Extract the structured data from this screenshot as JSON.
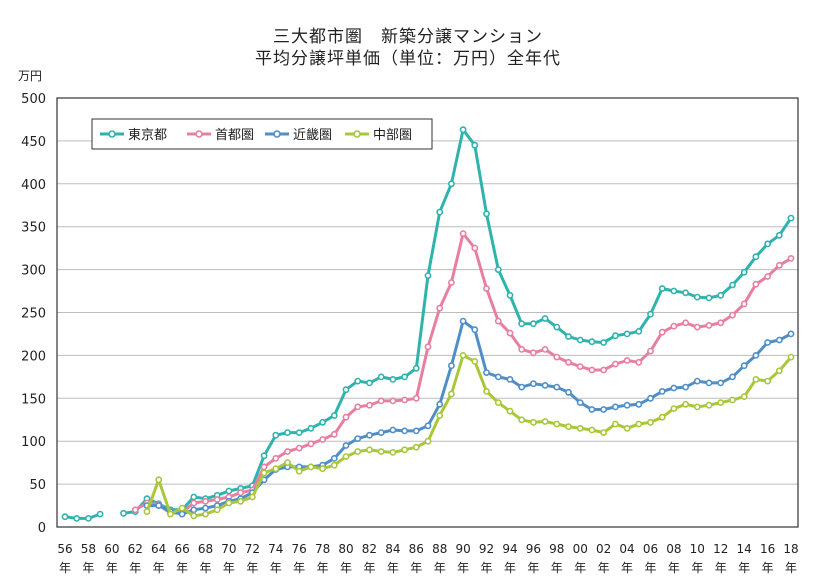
{
  "chart_data": {
    "type": "line",
    "title": "三大都市圏　新築分譲マンション",
    "subtitle": "平均分譲坪単価（単位：万円）全年代",
    "ylabel": "万円",
    "ylim": [
      0,
      500
    ],
    "yticks": [
      0,
      50,
      100,
      150,
      200,
      250,
      300,
      350,
      400,
      450,
      500
    ],
    "xticks": [
      {
        "year": 1956,
        "label": "56"
      },
      {
        "year": 1958,
        "label": "58"
      },
      {
        "year": 1960,
        "label": "60"
      },
      {
        "year": 1962,
        "label": "62"
      },
      {
        "year": 1964,
        "label": "64"
      },
      {
        "year": 1966,
        "label": "66"
      },
      {
        "year": 1968,
        "label": "68"
      },
      {
        "year": 1970,
        "label": "70"
      },
      {
        "year": 1972,
        "label": "72"
      },
      {
        "year": 1974,
        "label": "74"
      },
      {
        "year": 1976,
        "label": "76"
      },
      {
        "year": 1978,
        "label": "78"
      },
      {
        "year": 1980,
        "label": "80"
      },
      {
        "year": 1982,
        "label": "82"
      },
      {
        "year": 1984,
        "label": "84"
      },
      {
        "year": 1986,
        "label": "86"
      },
      {
        "year": 1988,
        "label": "88"
      },
      {
        "year": 1990,
        "label": "90"
      },
      {
        "year": 1992,
        "label": "92"
      },
      {
        "year": 1994,
        "label": "94"
      },
      {
        "year": 1996,
        "label": "96"
      },
      {
        "year": 1998,
        "label": "98"
      },
      {
        "year": 2000,
        "label": "00"
      },
      {
        "year": 2002,
        "label": "02"
      },
      {
        "year": 2004,
        "label": "04"
      },
      {
        "year": 2006,
        "label": "06"
      },
      {
        "year": 2008,
        "label": "08"
      },
      {
        "year": 2010,
        "label": "10"
      },
      {
        "year": 2012,
        "label": "12"
      },
      {
        "year": 2014,
        "label": "14"
      },
      {
        "year": 2016,
        "label": "16"
      },
      {
        "year": 2018,
        "label": "18"
      }
    ],
    "xtick_suffix": "年",
    "xlim": [
      1956,
      2018
    ],
    "legend_position": "top-left",
    "grid": "horizontal",
    "series": [
      {
        "name": "東京都",
        "color": "#2fb3ad",
        "points": [
          [
            1956,
            12
          ],
          [
            1957,
            10
          ],
          [
            1958,
            10
          ],
          [
            1959,
            15
          ],
          [
            1961,
            16
          ],
          [
            1962,
            18
          ],
          [
            1963,
            33
          ],
          [
            1964,
            27
          ],
          [
            1965,
            20
          ],
          [
            1966,
            20
          ],
          [
            1967,
            35
          ],
          [
            1968,
            33
          ],
          [
            1969,
            37
          ],
          [
            1970,
            42
          ],
          [
            1971,
            45
          ],
          [
            1972,
            48
          ],
          [
            1973,
            83
          ],
          [
            1974,
            107
          ],
          [
            1975,
            110
          ],
          [
            1976,
            110
          ],
          [
            1977,
            115
          ],
          [
            1978,
            122
          ],
          [
            1979,
            130
          ],
          [
            1980,
            160
          ],
          [
            1981,
            170
          ],
          [
            1982,
            168
          ],
          [
            1983,
            175
          ],
          [
            1984,
            172
          ],
          [
            1985,
            175
          ],
          [
            1986,
            185
          ],
          [
            1987,
            293
          ],
          [
            1988,
            367
          ],
          [
            1989,
            400
          ],
          [
            1990,
            463
          ],
          [
            1991,
            445
          ],
          [
            1992,
            365
          ],
          [
            1993,
            300
          ],
          [
            1994,
            270
          ],
          [
            1995,
            237
          ],
          [
            1996,
            237
          ],
          [
            1997,
            243
          ],
          [
            1998,
            233
          ],
          [
            1999,
            222
          ],
          [
            2000,
            218
          ],
          [
            2001,
            216
          ],
          [
            2002,
            215
          ],
          [
            2003,
            223
          ],
          [
            2004,
            225
          ],
          [
            2005,
            228
          ],
          [
            2006,
            248
          ],
          [
            2007,
            278
          ],
          [
            2008,
            275
          ],
          [
            2009,
            273
          ],
          [
            2010,
            268
          ],
          [
            2011,
            267
          ],
          [
            2012,
            270
          ],
          [
            2013,
            282
          ],
          [
            2014,
            297
          ],
          [
            2015,
            315
          ],
          [
            2016,
            330
          ],
          [
            2017,
            340
          ],
          [
            2018,
            360
          ]
        ]
      },
      {
        "name": "首都圏",
        "color": "#e87fa0",
        "points": [
          [
            1962,
            20
          ],
          [
            1963,
            28
          ],
          [
            1964,
            26
          ],
          [
            1965,
            16
          ],
          [
            1966,
            17
          ],
          [
            1967,
            28
          ],
          [
            1968,
            30
          ],
          [
            1969,
            32
          ],
          [
            1970,
            35
          ],
          [
            1971,
            40
          ],
          [
            1972,
            43
          ],
          [
            1973,
            70
          ],
          [
            1974,
            80
          ],
          [
            1975,
            88
          ],
          [
            1976,
            92
          ],
          [
            1977,
            97
          ],
          [
            1978,
            102
          ],
          [
            1979,
            108
          ],
          [
            1980,
            128
          ],
          [
            1981,
            140
          ],
          [
            1982,
            142
          ],
          [
            1983,
            147
          ],
          [
            1984,
            147
          ],
          [
            1985,
            148
          ],
          [
            1986,
            150
          ],
          [
            1987,
            210
          ],
          [
            1988,
            255
          ],
          [
            1989,
            285
          ],
          [
            1990,
            342
          ],
          [
            1991,
            325
          ],
          [
            1992,
            278
          ],
          [
            1993,
            240
          ],
          [
            1994,
            226
          ],
          [
            1995,
            207
          ],
          [
            1996,
            203
          ],
          [
            1997,
            207
          ],
          [
            1998,
            198
          ],
          [
            1999,
            192
          ],
          [
            2000,
            187
          ],
          [
            2001,
            183
          ],
          [
            2002,
            183
          ],
          [
            2003,
            190
          ],
          [
            2004,
            194
          ],
          [
            2005,
            192
          ],
          [
            2006,
            205
          ],
          [
            2007,
            227
          ],
          [
            2008,
            234
          ],
          [
            2009,
            238
          ],
          [
            2010,
            233
          ],
          [
            2011,
            235
          ],
          [
            2012,
            238
          ],
          [
            2013,
            247
          ],
          [
            2014,
            260
          ],
          [
            2015,
            283
          ],
          [
            2016,
            292
          ],
          [
            2017,
            305
          ],
          [
            2018,
            313
          ]
        ]
      },
      {
        "name": "近畿圏",
        "color": "#4f8fc8",
        "points": [
          [
            1963,
            25
          ],
          [
            1964,
            25
          ],
          [
            1965,
            18
          ],
          [
            1966,
            15
          ],
          [
            1967,
            20
          ],
          [
            1968,
            22
          ],
          [
            1969,
            25
          ],
          [
            1970,
            30
          ],
          [
            1971,
            33
          ],
          [
            1972,
            40
          ],
          [
            1973,
            55
          ],
          [
            1974,
            67
          ],
          [
            1975,
            70
          ],
          [
            1976,
            70
          ],
          [
            1977,
            70
          ],
          [
            1978,
            72
          ],
          [
            1979,
            80
          ],
          [
            1980,
            95
          ],
          [
            1981,
            103
          ],
          [
            1982,
            107
          ],
          [
            1983,
            110
          ],
          [
            1984,
            113
          ],
          [
            1985,
            112
          ],
          [
            1986,
            112
          ],
          [
            1987,
            118
          ],
          [
            1988,
            143
          ],
          [
            1989,
            188
          ],
          [
            1990,
            240
          ],
          [
            1991,
            230
          ],
          [
            1992,
            180
          ],
          [
            1993,
            175
          ],
          [
            1994,
            172
          ],
          [
            1995,
            163
          ],
          [
            1996,
            167
          ],
          [
            1997,
            165
          ],
          [
            1998,
            163
          ],
          [
            1999,
            157
          ],
          [
            2000,
            145
          ],
          [
            2001,
            137
          ],
          [
            2002,
            137
          ],
          [
            2003,
            140
          ],
          [
            2004,
            142
          ],
          [
            2005,
            143
          ],
          [
            2006,
            150
          ],
          [
            2007,
            158
          ],
          [
            2008,
            162
          ],
          [
            2009,
            163
          ],
          [
            2010,
            170
          ],
          [
            2011,
            168
          ],
          [
            2012,
            168
          ],
          [
            2013,
            175
          ],
          [
            2014,
            188
          ],
          [
            2015,
            200
          ],
          [
            2016,
            215
          ],
          [
            2017,
            218
          ],
          [
            2018,
            225
          ]
        ]
      },
      {
        "name": "中部圏",
        "color": "#a8c83a",
        "points": [
          [
            1963,
            18
          ],
          [
            1964,
            55
          ],
          [
            1965,
            15
          ],
          [
            1966,
            22
          ],
          [
            1967,
            13
          ],
          [
            1968,
            15
          ],
          [
            1969,
            20
          ],
          [
            1970,
            28
          ],
          [
            1971,
            30
          ],
          [
            1972,
            35
          ],
          [
            1973,
            63
          ],
          [
            1974,
            68
          ],
          [
            1975,
            75
          ],
          [
            1976,
            65
          ],
          [
            1977,
            70
          ],
          [
            1978,
            68
          ],
          [
            1979,
            72
          ],
          [
            1980,
            82
          ],
          [
            1981,
            88
          ],
          [
            1982,
            90
          ],
          [
            1983,
            88
          ],
          [
            1984,
            87
          ],
          [
            1985,
            90
          ],
          [
            1986,
            93
          ],
          [
            1987,
            100
          ],
          [
            1988,
            130
          ],
          [
            1989,
            155
          ],
          [
            1990,
            200
          ],
          [
            1991,
            193
          ],
          [
            1992,
            158
          ],
          [
            1993,
            145
          ],
          [
            1994,
            135
          ],
          [
            1995,
            125
          ],
          [
            1996,
            122
          ],
          [
            1997,
            123
          ],
          [
            1998,
            120
          ],
          [
            1999,
            117
          ],
          [
            2000,
            115
          ],
          [
            2001,
            113
          ],
          [
            2002,
            110
          ],
          [
            2003,
            120
          ],
          [
            2004,
            115
          ],
          [
            2005,
            120
          ],
          [
            2006,
            122
          ],
          [
            2007,
            128
          ],
          [
            2008,
            138
          ],
          [
            2009,
            143
          ],
          [
            2010,
            140
          ],
          [
            2011,
            142
          ],
          [
            2012,
            145
          ],
          [
            2013,
            148
          ],
          [
            2014,
            152
          ],
          [
            2015,
            172
          ],
          [
            2016,
            170
          ],
          [
            2017,
            182
          ],
          [
            2018,
            198
          ]
        ]
      }
    ]
  }
}
